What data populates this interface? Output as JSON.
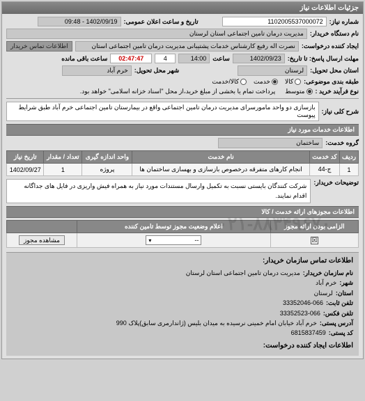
{
  "panel_title": "جزئیات اطلاعات نیاز",
  "fields": {
    "need_no_label": "شماره نیاز:",
    "need_no": "1102005537000072",
    "announce_label": "تاریخ و ساعت اعلان عمومی:",
    "announce_value": "1402/09/19 - 09:48",
    "buyer_label": "نام دستگاه خریدار:",
    "buyer_value": "مدیریت درمان تامین اجتماعی استان لرستان",
    "requester_label": "ایجاد کننده درخواست:",
    "requester_value": "نصرت اله رفیع کارشناس خدمات پشتیبانی مدیریت درمان تامین اجتماعی استان",
    "contact_link": "اطلاعات تماس خریدار",
    "deadline_label": "مهلت ارسال پاسخ: تا تاریخ:",
    "deadline_date": "1402/09/23",
    "deadline_time_label": "ساعت",
    "deadline_time": "14:00",
    "remain_days": "4",
    "remain_clock": "02:47:47",
    "remain_text": "ساعت باقی مانده",
    "delivery_province_label": "استان محل تحویل:",
    "delivery_province": "لرستان",
    "delivery_city_label": "شهر محل تحویل:",
    "delivery_city": "خرم آباد",
    "budget_label": "طبقه بندی موضوعی:",
    "budget_opts": [
      "کالا",
      "خدمت",
      "کالا/خدمت"
    ],
    "budget_checked": 1,
    "purchase_type_label": "نوع فرآیند خرید :",
    "purchase_type_opts": [
      "متوسط"
    ],
    "purchase_note": "پرداخت تمام یا بخشی از مبلغ خرید،از محل \"اسناد خزانه اسلامی\" خواهد بود.",
    "subject_label": "شرح کلی نیاز:",
    "subject_value": "بازسازی دو واحد مامورسرای مدیریت درمان تامین اجتماعی واقع در بیمارستان تامین اجتماعی خرم آباد طبق شرایط پیوست"
  },
  "services_header": "اطلاعات خدمات مورد نیاز",
  "service_group_label": "گروه خدمت:",
  "service_group_value": "ساختمان",
  "service_table": {
    "columns": [
      "ردیف",
      "کد خدمت",
      "نام خدمت",
      "واحد اندازه گیری",
      "تعداد / مقدار",
      "تاریخ نیاز"
    ],
    "rows": [
      [
        "1",
        "ج-44",
        "انجام کارهای متفرقه درخصوص بازسازی و بهسازی ساختمان ها",
        "پروژه",
        "1",
        "1402/09/27"
      ]
    ]
  },
  "buyer_notes_label": "توضیحات خریدار:",
  "buyer_notes_value": "شرکت کنندگان بایستی نسبت به تکمیل وارسال مستندات مورد نیاز به همراه فیش واریزی در فایل های جداگانه اقدام نمایند.",
  "auth_header": "اطلاعات مجوزهای ارائه خدمت / کالا",
  "auth_table": {
    "columns": [
      "الزامی بودن ارائه مجوز",
      "اعلام وضعیت مجوز توسط تامین کننده",
      ""
    ],
    "view_btn": "مشاهده مجوز",
    "dropdown_value": "--",
    "mandatory_checked": true
  },
  "watermark": "۰۲۱-۸۸۳۴۹۶۷۰",
  "contact": {
    "title": "اطلاعات تماس سازمان خریدار:",
    "org_label": "نام سازمان خریدار:",
    "org_value": "مدیریت درمان تامین اجتماعی استان لرستان",
    "city_label": "شهر:",
    "city_value": "خرم آباد",
    "province_label": "استان:",
    "province_value": "لرستان",
    "phone_label": "تلفن ثابت:",
    "phone_value": "33352046-066",
    "fax_label": "تلفن فکس:",
    "fax_value": "33352523-066",
    "postal_addr_label": "آدرس پستی:",
    "postal_addr_value": "خرم آباد خیابان امام خمینی نرسیده به میدان بلیس (ژاندارمری سابق)پلاک 990",
    "postal_code_label": "کد پستی:",
    "postal_code_value": "6815837459",
    "creator_title": "اطلاعات ایجاد کننده درخواست:"
  }
}
